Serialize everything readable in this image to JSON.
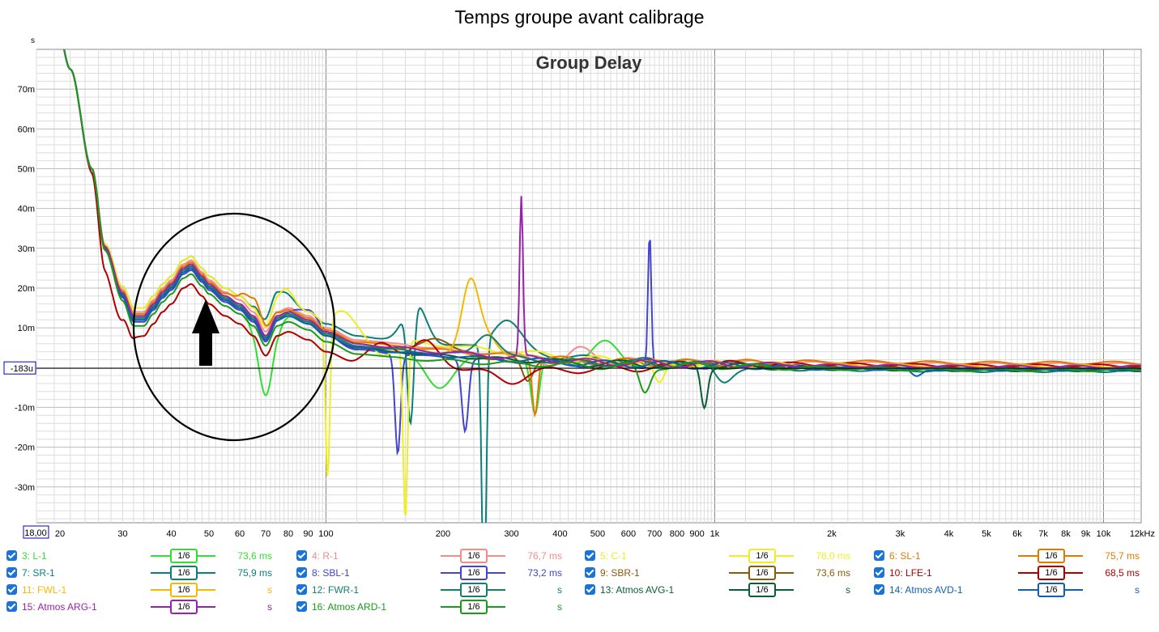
{
  "title": "Temps groupe avant calibrage",
  "chart_data": {
    "type": "line",
    "inner_title": "Group Delay",
    "y_unit": "s",
    "x_scale": "log",
    "xlim": [
      18,
      12500
    ],
    "ylim": [
      -0.039,
      0.08
    ],
    "x_ticks": [
      {
        "v": 18,
        "label": "18,00"
      },
      {
        "v": 20,
        "label": "20"
      },
      {
        "v": 30,
        "label": "30"
      },
      {
        "v": 40,
        "label": "40"
      },
      {
        "v": 50,
        "label": "50"
      },
      {
        "v": 60,
        "label": "60"
      },
      {
        "v": 70,
        "label": "70"
      },
      {
        "v": 80,
        "label": "80"
      },
      {
        "v": 90,
        "label": "90"
      },
      {
        "v": 100,
        "label": "100"
      },
      {
        "v": 200,
        "label": "200"
      },
      {
        "v": 300,
        "label": "300"
      },
      {
        "v": 400,
        "label": "400"
      },
      {
        "v": 500,
        "label": "500"
      },
      {
        "v": 600,
        "label": "600"
      },
      {
        "v": 700,
        "label": "700"
      },
      {
        "v": 800,
        "label": "800"
      },
      {
        "v": 900,
        "label": "900"
      },
      {
        "v": 1000,
        "label": "1k"
      },
      {
        "v": 2000,
        "label": "2k"
      },
      {
        "v": 3000,
        "label": "3k"
      },
      {
        "v": 4000,
        "label": "4k"
      },
      {
        "v": 5000,
        "label": "5k"
      },
      {
        "v": 6000,
        "label": "6k"
      },
      {
        "v": 7000,
        "label": "7k"
      },
      {
        "v": 8000,
        "label": "8k"
      },
      {
        "v": 9000,
        "label": "9k"
      },
      {
        "v": 10000,
        "label": "10k"
      },
      {
        "v": 12500,
        "label": "12kHz"
      }
    ],
    "y_ticks": [
      {
        "v": 0.07,
        "label": "70m"
      },
      {
        "v": 0.06,
        "label": "60m"
      },
      {
        "v": 0.05,
        "label": "50m"
      },
      {
        "v": 0.04,
        "label": "40m"
      },
      {
        "v": 0.03,
        "label": "30m"
      },
      {
        "v": 0.02,
        "label": "20m"
      },
      {
        "v": 0.01,
        "label": "10m"
      },
      {
        "v": -0.01,
        "label": "-10m"
      },
      {
        "v": -0.02,
        "label": "-20m"
      },
      {
        "v": -0.03,
        "label": "-30m"
      }
    ],
    "cursor_label": "-183u",
    "cursor_value": -0.000183,
    "colors": {
      "grid_minor": "#dddddd",
      "grid_major": "#888888",
      "cursor": "#000000",
      "cursor_box": "#0000cc"
    },
    "annotations": {
      "ellipse": {
        "cx_hz": 52,
        "cy": 0.019,
        "note": "circled region 30-100 Hz"
      },
      "arrow": {
        "x_hz": 48,
        "from": 0.0,
        "to": 0.017
      }
    },
    "base_x": [
      18,
      20,
      22,
      25,
      27,
      30,
      32,
      34,
      36,
      38,
      40,
      43,
      45,
      48,
      50,
      55,
      60,
      65,
      70,
      75,
      80,
      90,
      100,
      120,
      150,
      200,
      300,
      500,
      1000,
      2000,
      5000,
      12500
    ],
    "base_y": [
      0.095,
      0.09,
      0.075,
      0.05,
      0.03,
      0.018,
      0.012,
      0.012,
      0.015,
      0.018,
      0.02,
      0.024,
      0.025,
      0.022,
      0.02,
      0.017,
      0.015,
      0.012,
      0.007,
      0.012,
      0.013,
      0.011,
      0.008,
      0.005,
      0.004,
      0.003,
      0.002,
      0.001,
      0.0007,
      0.0003,
      0.0,
      0.0
    ],
    "series": [
      {
        "name": "3: L-1",
        "color": "#33dd33",
        "value": "73,6 ms",
        "offset": 0.0,
        "tail": -0.0005,
        "features": [
          {
            "f": 70,
            "a": -0.014,
            "w": 0.03
          },
          {
            "f": 195,
            "a": -0.008,
            "w": 0.05
          },
          {
            "f": 345,
            "a": -0.014,
            "w": 0.015
          },
          {
            "f": 525,
            "a": 0.005,
            "w": 0.05
          }
        ]
      },
      {
        "name": "7: SR-1",
        "color": "#0d7f7a",
        "value": "75,9 ms",
        "offset": 0.003,
        "tail": -0.0008,
        "features": [
          {
            "f": 75,
            "a": 0.004,
            "w": 0.04
          },
          {
            "f": 170,
            "a": 0.01,
            "w": 0.04
          },
          {
            "f": 165,
            "a": -0.03,
            "w": 0.012
          },
          {
            "f": 255,
            "a": -0.065,
            "w": 0.008
          },
          {
            "f": 290,
            "a": 0.008,
            "w": 0.05
          },
          {
            "f": 1050,
            "a": -0.004,
            "w": 0.03
          }
        ]
      },
      {
        "name": "4: R-1",
        "color": "#f48b8b",
        "value": "76,7 ms",
        "offset": 0.002,
        "tail": 0.0008,
        "features": [
          {
            "f": 400,
            "a": -0.003,
            "w": 0.05
          },
          {
            "f": 450,
            "a": 0.004,
            "w": 0.05
          }
        ]
      },
      {
        "name": "8: SBL-1",
        "color": "#4444cc",
        "value": "73,2 ms",
        "offset": -0.0005,
        "tail": -0.0003,
        "features": [
          {
            "f": 90,
            "a": 0.004,
            "w": 0.05
          },
          {
            "f": 153,
            "a": -0.025,
            "w": 0.01
          },
          {
            "f": 228,
            "a": -0.018,
            "w": 0.012
          },
          {
            "f": 680,
            "a": 0.034,
            "w": 0.006
          }
        ]
      },
      {
        "name": "5: C-1",
        "color": "#eeee22",
        "value": "78,0 ms",
        "offset": 0.003,
        "tail": 0.0,
        "features": [
          {
            "f": 78,
            "a": 0.004,
            "w": 0.03
          },
          {
            "f": 101,
            "a": -0.04,
            "w": 0.008
          },
          {
            "f": 112,
            "a": 0.005,
            "w": 0.04
          },
          {
            "f": 140,
            "a": -0.004,
            "w": 0.04
          },
          {
            "f": 160,
            "a": -0.045,
            "w": 0.008
          },
          {
            "f": 720,
            "a": -0.006,
            "w": 0.02
          }
        ]
      },
      {
        "name": "9: SBR-1",
        "color": "#8b5a0a",
        "value": "73,6 ms",
        "offset": 0.0005,
        "tail": -0.0002,
        "features": [
          {
            "f": 190,
            "a": 0.004,
            "w": 0.05
          },
          {
            "f": 330,
            "a": -0.006,
            "w": 0.02
          }
        ]
      },
      {
        "name": "6: SL-1",
        "color": "#e07b00",
        "value": "75,7 ms",
        "offset": 0.0015,
        "tail": 0.0012,
        "features": [
          {
            "f": 65,
            "a": 0.004,
            "w": 0.04
          },
          {
            "f": 345,
            "a": -0.014,
            "w": 0.01
          }
        ]
      },
      {
        "name": "10: LFE-1",
        "color": "#b20000",
        "value": "68,5 ms",
        "offset": -0.004,
        "tail": 0.0005,
        "features": [
          {
            "f": 28,
            "a": -0.005,
            "w": 0.04
          },
          {
            "f": 140,
            "a": 0.006,
            "w": 0.05
          },
          {
            "f": 180,
            "a": 0.007,
            "w": 0.05
          },
          {
            "f": 300,
            "a": -0.003,
            "w": 0.05
          }
        ]
      },
      {
        "name": "11: FWL-1",
        "color": "#f5b800",
        "value": "s",
        "offset": 0.001,
        "tail": 0.0004,
        "features": [
          {
            "f": 235,
            "a": 0.017,
            "w": 0.03
          },
          {
            "f": 260,
            "a": 0.005,
            "w": 0.04
          }
        ]
      },
      {
        "name": "12: FWR-1",
        "color": "#15806a",
        "value": "s",
        "offset": 0.0005,
        "tail": -0.0004,
        "features": [
          {
            "f": 260,
            "a": 0.006,
            "w": 0.04
          }
        ]
      },
      {
        "name": "13: Atmos AVG-1",
        "color": "#0a5e36",
        "value": "s",
        "offset": 0.0,
        "tail": -0.0006,
        "features": [
          {
            "f": 940,
            "a": -0.01,
            "w": 0.012
          }
        ]
      },
      {
        "name": "14: Atmos AVD-1",
        "color": "#1060b0",
        "value": "s",
        "offset": 0.0,
        "tail": -0.0005,
        "features": [
          {
            "f": 3300,
            "a": -0.002,
            "w": 0.02
          }
        ]
      },
      {
        "name": "15: Atmos ARG-1",
        "color": "#9922aa",
        "value": "s",
        "offset": 0.001,
        "tail": 0.0002,
        "features": [
          {
            "f": 318,
            "a": 0.04,
            "w": 0.006
          }
        ]
      },
      {
        "name": "16: Atmos ARD-1",
        "color": "#1b9a1b",
        "value": "s",
        "offset": -0.0015,
        "tail": -0.0006,
        "features": [
          {
            "f": 660,
            "a": -0.007,
            "w": 0.02
          }
        ]
      }
    ]
  },
  "legend": {
    "smoothing_label": "1/6",
    "rows": [
      [
        0,
        2,
        4,
        6
      ],
      [
        1,
        3,
        5,
        7
      ],
      [
        8,
        9,
        10,
        11
      ],
      [
        12,
        13
      ]
    ]
  }
}
